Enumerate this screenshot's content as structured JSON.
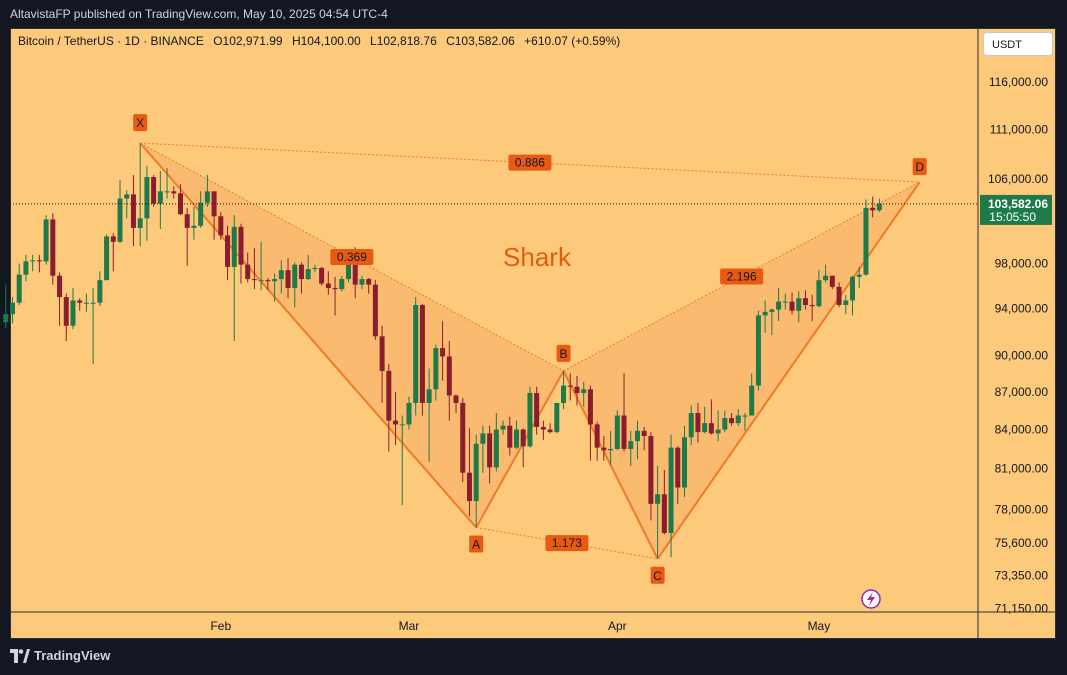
{
  "header": {
    "published": "AltavistaFP published on TradingView.com, May 10, 2025 04:54 UTC-4"
  },
  "symbol": {
    "name": "Bitcoin / TetherUS · 1D · BINANCE",
    "open": "O102,971.99",
    "high": "H104,100.00",
    "low": "L102,818.76",
    "close": "C103,582.06",
    "change": "+610.07 (+0.59%)"
  },
  "currency_button": "USDT",
  "brand": "TradingView",
  "colors": {
    "background": "#fdc97a",
    "up_candle": "#1f7a4a",
    "down_candle": "#8a1e2e",
    "pattern_line": "#f07a25",
    "pattern_fill": "#f7a862",
    "label_bg": "#e85a12",
    "current_price_bg": "#1f7a4a"
  },
  "chart_data": {
    "type": "candlestick",
    "title": "Shark",
    "y_axis": {
      "ticks": [
        "116,000.00",
        "111,000.00",
        "106,000.00",
        "98,000.00",
        "94,000.00",
        "90,000.00",
        "87,000.00",
        "84,000.00",
        "81,000.00",
        "78,000.00",
        "75,600.00",
        "73,350.00",
        "71,150.00"
      ],
      "scale": "log",
      "range": [
        70800,
        121500
      ]
    },
    "x_axis": {
      "ticks": [
        "Feb",
        "Mar",
        "Apr",
        "May"
      ]
    },
    "current_price": "103,582.06",
    "countdown": "15:05:50",
    "pattern": {
      "name": "Shark",
      "points": [
        {
          "label": "X",
          "date": "2025-01-20",
          "price": 109600
        },
        {
          "label": "A",
          "date": "2025-03-11",
          "price": 76700
        },
        {
          "label": "B",
          "date": "2025-03-24",
          "price": 88700
        },
        {
          "label": "C",
          "date": "2025-04-07",
          "price": 74500
        },
        {
          "label": "D",
          "date": "2025-05-16",
          "price": 105700
        }
      ],
      "ratios": [
        {
          "value": "0.886",
          "between": "X-D"
        },
        {
          "value": "0.369",
          "between": "X-B"
        },
        {
          "value": "1.173",
          "between": "A-C"
        },
        {
          "value": "2.196",
          "between": "B-D"
        }
      ]
    },
    "candles": [
      {
        "date": "2024-12-31",
        "o": 92800,
        "h": 96100,
        "l": 92300,
        "c": 93500
      },
      {
        "date": "2025-01-01",
        "o": 93500,
        "h": 95000,
        "l": 92700,
        "c": 94500
      },
      {
        "date": "2025-01-02",
        "o": 94500,
        "h": 98000,
        "l": 94300,
        "c": 97000
      },
      {
        "date": "2025-01-03",
        "o": 97000,
        "h": 98800,
        "l": 96400,
        "c": 98200
      },
      {
        "date": "2025-01-04",
        "o": 98200,
        "h": 98800,
        "l": 97300,
        "c": 98300
      },
      {
        "date": "2025-01-05",
        "o": 98300,
        "h": 98800,
        "l": 97200,
        "c": 98200
      },
      {
        "date": "2025-01-06",
        "o": 98200,
        "h": 102500,
        "l": 97900,
        "c": 102100
      },
      {
        "date": "2025-01-07",
        "o": 102100,
        "h": 102700,
        "l": 96100,
        "c": 96900
      },
      {
        "date": "2025-01-08",
        "o": 96900,
        "h": 97200,
        "l": 92500,
        "c": 95000
      },
      {
        "date": "2025-01-09",
        "o": 95000,
        "h": 95300,
        "l": 91200,
        "c": 92500
      },
      {
        "date": "2025-01-10",
        "o": 92500,
        "h": 95800,
        "l": 92200,
        "c": 94700
      },
      {
        "date": "2025-01-11",
        "o": 94700,
        "h": 94900,
        "l": 93800,
        "c": 94500
      },
      {
        "date": "2025-01-12",
        "o": 94500,
        "h": 95300,
        "l": 93700,
        "c": 94500
      },
      {
        "date": "2025-01-13",
        "o": 94500,
        "h": 95800,
        "l": 89300,
        "c": 94500
      },
      {
        "date": "2025-01-14",
        "o": 94500,
        "h": 97300,
        "l": 94200,
        "c": 96500
      },
      {
        "date": "2025-01-15",
        "o": 96500,
        "h": 100700,
        "l": 96500,
        "c": 100500
      },
      {
        "date": "2025-01-16",
        "o": 100500,
        "h": 100800,
        "l": 97300,
        "c": 100000
      },
      {
        "date": "2025-01-17",
        "o": 100000,
        "h": 105900,
        "l": 99900,
        "c": 104100
      },
      {
        "date": "2025-01-18",
        "o": 104100,
        "h": 104900,
        "l": 102200,
        "c": 104500
      },
      {
        "date": "2025-01-19",
        "o": 104500,
        "h": 106400,
        "l": 99600,
        "c": 101300
      },
      {
        "date": "2025-01-20",
        "o": 101300,
        "h": 109600,
        "l": 99600,
        "c": 102200
      },
      {
        "date": "2025-01-21",
        "o": 102200,
        "h": 107300,
        "l": 100100,
        "c": 106200
      },
      {
        "date": "2025-01-22",
        "o": 106200,
        "h": 106400,
        "l": 103300,
        "c": 103600
      },
      {
        "date": "2025-01-23",
        "o": 103600,
        "h": 106800,
        "l": 101200,
        "c": 104800
      },
      {
        "date": "2025-01-24",
        "o": 104800,
        "h": 107100,
        "l": 104100,
        "c": 104800
      },
      {
        "date": "2025-01-25",
        "o": 104800,
        "h": 105300,
        "l": 104100,
        "c": 104600
      },
      {
        "date": "2025-01-26",
        "o": 104600,
        "h": 105500,
        "l": 102500,
        "c": 102600
      },
      {
        "date": "2025-01-27",
        "o": 102600,
        "h": 103200,
        "l": 97800,
        "c": 101300
      },
      {
        "date": "2025-01-28",
        "o": 101300,
        "h": 103300,
        "l": 100200,
        "c": 101500
      },
      {
        "date": "2025-01-29",
        "o": 101500,
        "h": 104800,
        "l": 101300,
        "c": 103700
      },
      {
        "date": "2025-01-30",
        "o": 103700,
        "h": 106400,
        "l": 103300,
        "c": 104800
      },
      {
        "date": "2025-01-31",
        "o": 104800,
        "h": 104800,
        "l": 100200,
        "c": 102400
      },
      {
        "date": "2025-02-01",
        "o": 102400,
        "h": 102800,
        "l": 100200,
        "c": 100600
      },
      {
        "date": "2025-02-02",
        "o": 100600,
        "h": 101500,
        "l": 96500,
        "c": 97700
      },
      {
        "date": "2025-02-03",
        "o": 97700,
        "h": 102500,
        "l": 91200,
        "c": 101400
      },
      {
        "date": "2025-02-04",
        "o": 101400,
        "h": 101700,
        "l": 96200,
        "c": 97900
      },
      {
        "date": "2025-02-05",
        "o": 97900,
        "h": 99000,
        "l": 96300,
        "c": 96600
      },
      {
        "date": "2025-02-06",
        "o": 96600,
        "h": 99400,
        "l": 95700,
        "c": 96500
      },
      {
        "date": "2025-02-07",
        "o": 96500,
        "h": 100000,
        "l": 95600,
        "c": 96500
      },
      {
        "date": "2025-02-08",
        "o": 96500,
        "h": 96700,
        "l": 95600,
        "c": 96400
      },
      {
        "date": "2025-02-09",
        "o": 96400,
        "h": 97100,
        "l": 94600,
        "c": 96600
      },
      {
        "date": "2025-02-10",
        "o": 96600,
        "h": 98300,
        "l": 95300,
        "c": 97400
      },
      {
        "date": "2025-02-11",
        "o": 97400,
        "h": 98500,
        "l": 94900,
        "c": 95800
      },
      {
        "date": "2025-02-12",
        "o": 95800,
        "h": 98100,
        "l": 94100,
        "c": 97900
      },
      {
        "date": "2025-02-13",
        "o": 97900,
        "h": 98100,
        "l": 95300,
        "c": 96600
      },
      {
        "date": "2025-02-14",
        "o": 96600,
        "h": 98800,
        "l": 96500,
        "c": 97500
      },
      {
        "date": "2025-02-15",
        "o": 97500,
        "h": 97900,
        "l": 97200,
        "c": 97600
      },
      {
        "date": "2025-02-16",
        "o": 97600,
        "h": 97700,
        "l": 96000,
        "c": 96200
      },
      {
        "date": "2025-02-17",
        "o": 96200,
        "h": 97300,
        "l": 95200,
        "c": 95800
      },
      {
        "date": "2025-02-18",
        "o": 95800,
        "h": 96800,
        "l": 93400,
        "c": 95700
      },
      {
        "date": "2025-02-19",
        "o": 95700,
        "h": 96900,
        "l": 95500,
        "c": 96600
      },
      {
        "date": "2025-02-20",
        "o": 96600,
        "h": 98800,
        "l": 96300,
        "c": 98300
      },
      {
        "date": "2025-02-21",
        "o": 98300,
        "h": 99500,
        "l": 94900,
        "c": 96100
      },
      {
        "date": "2025-02-22",
        "o": 96100,
        "h": 96900,
        "l": 95700,
        "c": 96600
      },
      {
        "date": "2025-02-23",
        "o": 96600,
        "h": 96700,
        "l": 95300,
        "c": 96100
      },
      {
        "date": "2025-02-24",
        "o": 96100,
        "h": 96500,
        "l": 91300,
        "c": 91600
      },
      {
        "date": "2025-02-25",
        "o": 91600,
        "h": 92500,
        "l": 86100,
        "c": 88700
      },
      {
        "date": "2025-02-26",
        "o": 88700,
        "h": 89300,
        "l": 82300,
        "c": 84700
      },
      {
        "date": "2025-02-27",
        "o": 84700,
        "h": 87000,
        "l": 82800,
        "c": 84400
      },
      {
        "date": "2025-02-28",
        "o": 84400,
        "h": 85100,
        "l": 78300,
        "c": 84400
      },
      {
        "date": "2025-03-01",
        "o": 84400,
        "h": 86600,
        "l": 84000,
        "c": 86100
      },
      {
        "date": "2025-03-02",
        "o": 86100,
        "h": 95000,
        "l": 85100,
        "c": 94300
      },
      {
        "date": "2025-03-03",
        "o": 94300,
        "h": 94400,
        "l": 85100,
        "c": 86100
      },
      {
        "date": "2025-03-04",
        "o": 86100,
        "h": 88900,
        "l": 81500,
        "c": 87200
      },
      {
        "date": "2025-03-05",
        "o": 87200,
        "h": 90900,
        "l": 86300,
        "c": 90600
      },
      {
        "date": "2025-03-06",
        "o": 90600,
        "h": 92900,
        "l": 87900,
        "c": 89900
      },
      {
        "date": "2025-03-07",
        "o": 89900,
        "h": 91200,
        "l": 84700,
        "c": 86700
      },
      {
        "date": "2025-03-08",
        "o": 86700,
        "h": 86800,
        "l": 85300,
        "c": 86100
      },
      {
        "date": "2025-03-09",
        "o": 86100,
        "h": 86500,
        "l": 80000,
        "c": 80700
      },
      {
        "date": "2025-03-10",
        "o": 80700,
        "h": 84100,
        "l": 77500,
        "c": 78600
      },
      {
        "date": "2025-03-11",
        "o": 78600,
        "h": 83600,
        "l": 76700,
        "c": 82900
      },
      {
        "date": "2025-03-12",
        "o": 82900,
        "h": 84300,
        "l": 80700,
        "c": 83700
      },
      {
        "date": "2025-03-13",
        "o": 83700,
        "h": 84300,
        "l": 79900,
        "c": 81100
      },
      {
        "date": "2025-03-14",
        "o": 81100,
        "h": 85300,
        "l": 80800,
        "c": 84000
      },
      {
        "date": "2025-03-15",
        "o": 84000,
        "h": 84700,
        "l": 83600,
        "c": 84300
      },
      {
        "date": "2025-03-16",
        "o": 84300,
        "h": 85000,
        "l": 82000,
        "c": 82600
      },
      {
        "date": "2025-03-17",
        "o": 82600,
        "h": 84700,
        "l": 82500,
        "c": 84000
      },
      {
        "date": "2025-03-18",
        "o": 84000,
        "h": 84100,
        "l": 81100,
        "c": 82700
      },
      {
        "date": "2025-03-19",
        "o": 82700,
        "h": 87400,
        "l": 82600,
        "c": 86900
      },
      {
        "date": "2025-03-20",
        "o": 86900,
        "h": 87400,
        "l": 83600,
        "c": 84200
      },
      {
        "date": "2025-03-21",
        "o": 84200,
        "h": 84700,
        "l": 83200,
        "c": 84000
      },
      {
        "date": "2025-03-22",
        "o": 84000,
        "h": 84500,
        "l": 83700,
        "c": 83800
      },
      {
        "date": "2025-03-23",
        "o": 83800,
        "h": 86100,
        "l": 83700,
        "c": 86100
      },
      {
        "date": "2025-03-24",
        "o": 86100,
        "h": 88700,
        "l": 85600,
        "c": 87500
      },
      {
        "date": "2025-03-25",
        "o": 87500,
        "h": 88500,
        "l": 86300,
        "c": 87400
      },
      {
        "date": "2025-03-26",
        "o": 87400,
        "h": 88300,
        "l": 85900,
        "c": 86900
      },
      {
        "date": "2025-03-27",
        "o": 86900,
        "h": 87800,
        "l": 85800,
        "c": 87200
      },
      {
        "date": "2025-03-28",
        "o": 87200,
        "h": 87500,
        "l": 81600,
        "c": 84400
      },
      {
        "date": "2025-03-29",
        "o": 84400,
        "h": 84600,
        "l": 81600,
        "c": 82600
      },
      {
        "date": "2025-03-30",
        "o": 82600,
        "h": 83500,
        "l": 81600,
        "c": 82400
      },
      {
        "date": "2025-03-31",
        "o": 82400,
        "h": 83900,
        "l": 81300,
        "c": 82500
      },
      {
        "date": "2025-04-01",
        "o": 82500,
        "h": 85500,
        "l": 82400,
        "c": 85100
      },
      {
        "date": "2025-04-02",
        "o": 85100,
        "h": 88500,
        "l": 82300,
        "c": 82500
      },
      {
        "date": "2025-04-03",
        "o": 82500,
        "h": 83900,
        "l": 81200,
        "c": 83100
      },
      {
        "date": "2025-04-04",
        "o": 83100,
        "h": 84700,
        "l": 81700,
        "c": 83900
      },
      {
        "date": "2025-04-05",
        "o": 83900,
        "h": 84200,
        "l": 82400,
        "c": 83500
      },
      {
        "date": "2025-04-06",
        "o": 83500,
        "h": 83800,
        "l": 77200,
        "c": 78400
      },
      {
        "date": "2025-04-07",
        "o": 78400,
        "h": 81200,
        "l": 74500,
        "c": 79100
      },
      {
        "date": "2025-04-08",
        "o": 79100,
        "h": 80900,
        "l": 76200,
        "c": 76300
      },
      {
        "date": "2025-04-09",
        "o": 76300,
        "h": 83600,
        "l": 74600,
        "c": 82600
      },
      {
        "date": "2025-04-10",
        "o": 82600,
        "h": 82700,
        "l": 78400,
        "c": 79600
      },
      {
        "date": "2025-04-11",
        "o": 79600,
        "h": 84300,
        "l": 78900,
        "c": 83400
      },
      {
        "date": "2025-04-12",
        "o": 83400,
        "h": 85900,
        "l": 82800,
        "c": 85300
      },
      {
        "date": "2025-04-13",
        "o": 85300,
        "h": 86100,
        "l": 83000,
        "c": 83800
      },
      {
        "date": "2025-04-14",
        "o": 83800,
        "h": 85800,
        "l": 83700,
        "c": 84500
      },
      {
        "date": "2025-04-15",
        "o": 84500,
        "h": 86400,
        "l": 83600,
        "c": 83700
      },
      {
        "date": "2025-04-16",
        "o": 83700,
        "h": 85500,
        "l": 83100,
        "c": 84000
      },
      {
        "date": "2025-04-17",
        "o": 84000,
        "h": 85500,
        "l": 83800,
        "c": 84900
      },
      {
        "date": "2025-04-18",
        "o": 84900,
        "h": 85300,
        "l": 84300,
        "c": 84500
      },
      {
        "date": "2025-04-19",
        "o": 84500,
        "h": 85600,
        "l": 84300,
        "c": 85100
      },
      {
        "date": "2025-04-20",
        "o": 85100,
        "h": 85300,
        "l": 83900,
        "c": 85100
      },
      {
        "date": "2025-04-21",
        "o": 85100,
        "h": 88500,
        "l": 85100,
        "c": 87500
      },
      {
        "date": "2025-04-22",
        "o": 87500,
        "h": 93800,
        "l": 87100,
        "c": 93400
      },
      {
        "date": "2025-04-23",
        "o": 93400,
        "h": 94700,
        "l": 91900,
        "c": 93700
      },
      {
        "date": "2025-04-24",
        "o": 93700,
        "h": 94000,
        "l": 91700,
        "c": 93900
      },
      {
        "date": "2025-04-25",
        "o": 93900,
        "h": 95800,
        "l": 92900,
        "c": 94600
      },
      {
        "date": "2025-04-26",
        "o": 94600,
        "h": 95300,
        "l": 93900,
        "c": 94600
      },
      {
        "date": "2025-04-27",
        "o": 94600,
        "h": 95400,
        "l": 93500,
        "c": 93800
      },
      {
        "date": "2025-04-28",
        "o": 93800,
        "h": 95500,
        "l": 92800,
        "c": 94900
      },
      {
        "date": "2025-04-29",
        "o": 94900,
        "h": 95600,
        "l": 93900,
        "c": 94300
      },
      {
        "date": "2025-04-30",
        "o": 94300,
        "h": 95200,
        "l": 92900,
        "c": 94200
      },
      {
        "date": "2025-05-01",
        "o": 94200,
        "h": 97400,
        "l": 94100,
        "c": 96500
      },
      {
        "date": "2025-05-02",
        "o": 96500,
        "h": 97900,
        "l": 96300,
        "c": 96900
      },
      {
        "date": "2025-05-03",
        "o": 96900,
        "h": 96900,
        "l": 95700,
        "c": 95900
      },
      {
        "date": "2025-05-04",
        "o": 95900,
        "h": 96300,
        "l": 94100,
        "c": 94300
      },
      {
        "date": "2025-05-05",
        "o": 94300,
        "h": 95200,
        "l": 93500,
        "c": 94700
      },
      {
        "date": "2025-05-06",
        "o": 94700,
        "h": 96900,
        "l": 93400,
        "c": 96800
      },
      {
        "date": "2025-05-07",
        "o": 96800,
        "h": 97700,
        "l": 95800,
        "c": 97000
      },
      {
        "date": "2025-05-08",
        "o": 97000,
        "h": 104000,
        "l": 96900,
        "c": 103200
      },
      {
        "date": "2025-05-09",
        "o": 103200,
        "h": 104300,
        "l": 102300,
        "c": 102970
      },
      {
        "date": "2025-05-10",
        "o": 102970,
        "h": 104100,
        "l": 102800,
        "c": 103582
      }
    ]
  }
}
